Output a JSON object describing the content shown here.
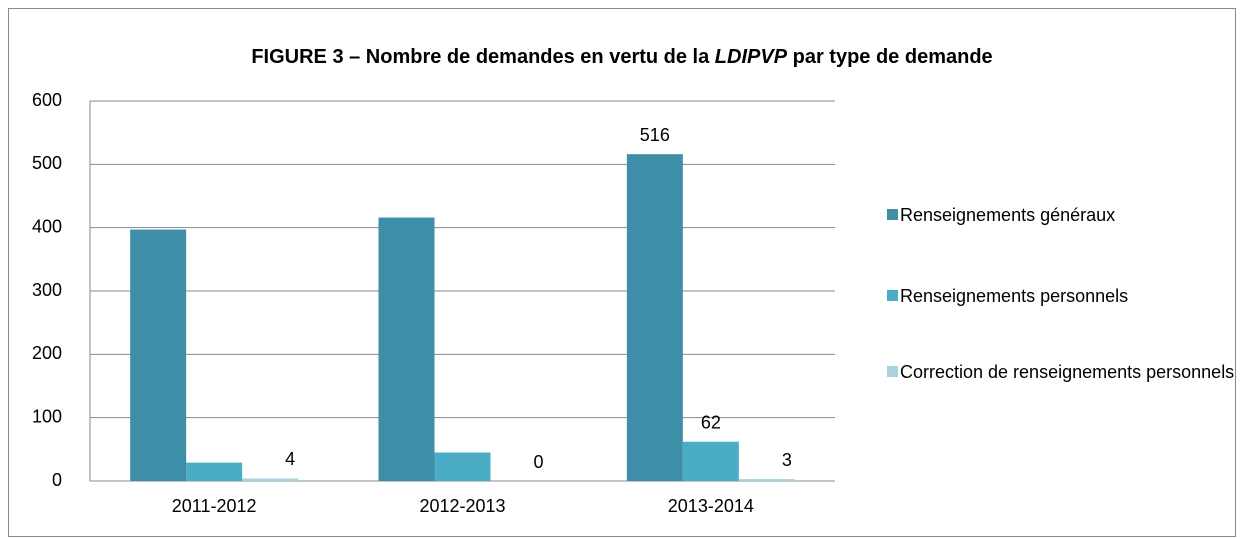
{
  "chart_data": {
    "type": "bar",
    "title": [
      "FIGURE 3 – Nombre de demandes en vertu de la ",
      "LDIPVP",
      " par type de demande"
    ],
    "categories": [
      "2011-2012",
      "2012-2013",
      "2013-2014"
    ],
    "series": [
      {
        "name": "Renseignements généraux",
        "color": "#3d8ea6",
        "values": [
          397,
          416,
          516
        ],
        "value_labels": [
          null,
          null,
          "516"
        ]
      },
      {
        "name": "Renseignements personnels",
        "color": "#4bacc6",
        "values": [
          29,
          45,
          62
        ],
        "value_labels": [
          null,
          null,
          "62"
        ]
      },
      {
        "name": "Correction de renseignements personnels",
        "color": "#a9d3e0",
        "values": [
          4,
          0,
          3
        ],
        "value_labels": [
          "4",
          "0",
          "3"
        ]
      }
    ],
    "ylim": [
      0,
      600
    ],
    "yticks": [
      0,
      100,
      200,
      300,
      400,
      500,
      600
    ],
    "grid": true,
    "legend": "right"
  }
}
